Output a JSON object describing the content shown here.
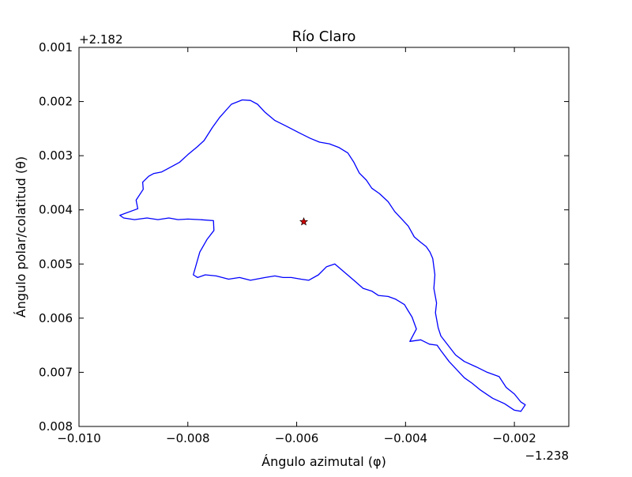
{
  "chart_data": {
    "type": "line",
    "title": "Río Claro",
    "xlabel": "Ángulo azimutal (φ)",
    "ylabel": "Ángulo polar/colatitud (θ)",
    "x_offset_label": "−1.238",
    "y_offset_label": "+2.182",
    "xlim": [
      -0.01,
      -0.001
    ],
    "ylim": [
      0.008,
      0.001
    ],
    "y_inverted": true,
    "x_ticks": [
      -0.01,
      -0.008,
      -0.006,
      -0.004,
      -0.002
    ],
    "x_tick_labels": [
      "−0.010",
      "−0.008",
      "−0.006",
      "−0.004",
      "−0.002"
    ],
    "y_ticks": [
      0.001,
      0.002,
      0.003,
      0.004,
      0.005,
      0.006,
      0.007,
      0.008
    ],
    "y_tick_labels": [
      "0.001",
      "0.002",
      "0.003",
      "0.004",
      "0.005",
      "0.006",
      "0.007",
      "0.008"
    ],
    "grid": false,
    "colors": {
      "outline": "#0000ff",
      "marker_fill": "#cc0000",
      "marker_stroke": "#000000"
    },
    "series": [
      {
        "kind": "polygon",
        "x": [
          -0.00925,
          -0.00892,
          -0.00895,
          -0.00882,
          -0.00883,
          -0.00872,
          -0.00863,
          -0.00848,
          -0.00833,
          -0.00815,
          -0.008,
          -0.00782,
          -0.0077,
          -0.00755,
          -0.00742,
          -0.0072,
          -0.007,
          -0.00685,
          -0.00672,
          -0.00658,
          -0.0064,
          -0.0062,
          -0.00595,
          -0.00575,
          -0.00558,
          -0.0054,
          -0.00522,
          -0.00506,
          -0.00495,
          -0.00485,
          -0.00472,
          -0.00462,
          -0.00448,
          -0.00432,
          -0.0042,
          -0.00406,
          -0.00395,
          -0.00384,
          -0.00372,
          -0.00362,
          -0.00355,
          -0.0035,
          -0.00346,
          -0.00348,
          -0.00343,
          -0.00345,
          -0.0034,
          -0.00335,
          -0.00322,
          -0.00308,
          -0.00292,
          -0.0027,
          -0.0025,
          -0.00228,
          -0.00215,
          -0.002,
          -0.00188,
          -0.0018,
          -0.00188,
          -0.002,
          -0.00218,
          -0.0024,
          -0.00262,
          -0.00278,
          -0.00292,
          -0.00308,
          -0.0032,
          -0.00335,
          -0.00342,
          -0.00356,
          -0.00372,
          -0.00392,
          -0.0038,
          -0.00388,
          -0.00396,
          -0.00402,
          -0.00418,
          -0.00432,
          -0.0045,
          -0.00462,
          -0.00478,
          -0.00495,
          -0.0053,
          -0.00545,
          -0.0056,
          -0.00578,
          -0.00592,
          -0.0061,
          -0.00625,
          -0.0064,
          -0.00658,
          -0.00685,
          -0.00705,
          -0.00725,
          -0.00748,
          -0.00768,
          -0.00782,
          -0.0079,
          -0.00778,
          -0.00765,
          -0.00752,
          -0.00753,
          -0.00778,
          -0.008,
          -0.00818,
          -0.00835,
          -0.00855,
          -0.00875,
          -0.00898,
          -0.00918
        ],
        "y": [
          0.0041,
          0.00398,
          0.00382,
          0.00362,
          0.00349,
          0.00338,
          0.00333,
          0.0033,
          0.00322,
          0.00312,
          0.00298,
          0.00283,
          0.00272,
          0.00248,
          0.0023,
          0.00205,
          0.00197,
          0.00198,
          0.00205,
          0.0022,
          0.00235,
          0.00245,
          0.00258,
          0.00268,
          0.00275,
          0.00278,
          0.00285,
          0.00295,
          0.00312,
          0.00332,
          0.00345,
          0.0036,
          0.0037,
          0.00385,
          0.00403,
          0.00418,
          0.0043,
          0.0045,
          0.0046,
          0.00468,
          0.00478,
          0.0049,
          0.0052,
          0.00545,
          0.00572,
          0.0059,
          0.00618,
          0.00633,
          0.0065,
          0.00668,
          0.0068,
          0.0069,
          0.007,
          0.00708,
          0.00728,
          0.0074,
          0.00755,
          0.0076,
          0.00772,
          0.0077,
          0.00758,
          0.00748,
          0.00733,
          0.0072,
          0.0071,
          0.00693,
          0.0068,
          0.0066,
          0.0065,
          0.00648,
          0.0064,
          0.00643,
          0.0062,
          0.00598,
          0.00585,
          0.00575,
          0.00565,
          0.0056,
          0.00558,
          0.0055,
          0.00545,
          0.0053,
          0.005,
          0.00505,
          0.0052,
          0.0053,
          0.00528,
          0.00525,
          0.00525,
          0.00522,
          0.00525,
          0.0053,
          0.00525,
          0.00528,
          0.00522,
          0.0052,
          0.00525,
          0.0052,
          0.00478,
          0.00455,
          0.00438,
          0.0042,
          0.00418,
          0.00417,
          0.00418,
          0.00415,
          0.00418,
          0.00415,
          0.00418,
          0.00415
        ]
      }
    ],
    "marker": {
      "symbol": "star",
      "x": -0.00587,
      "y": 0.00422
    }
  }
}
